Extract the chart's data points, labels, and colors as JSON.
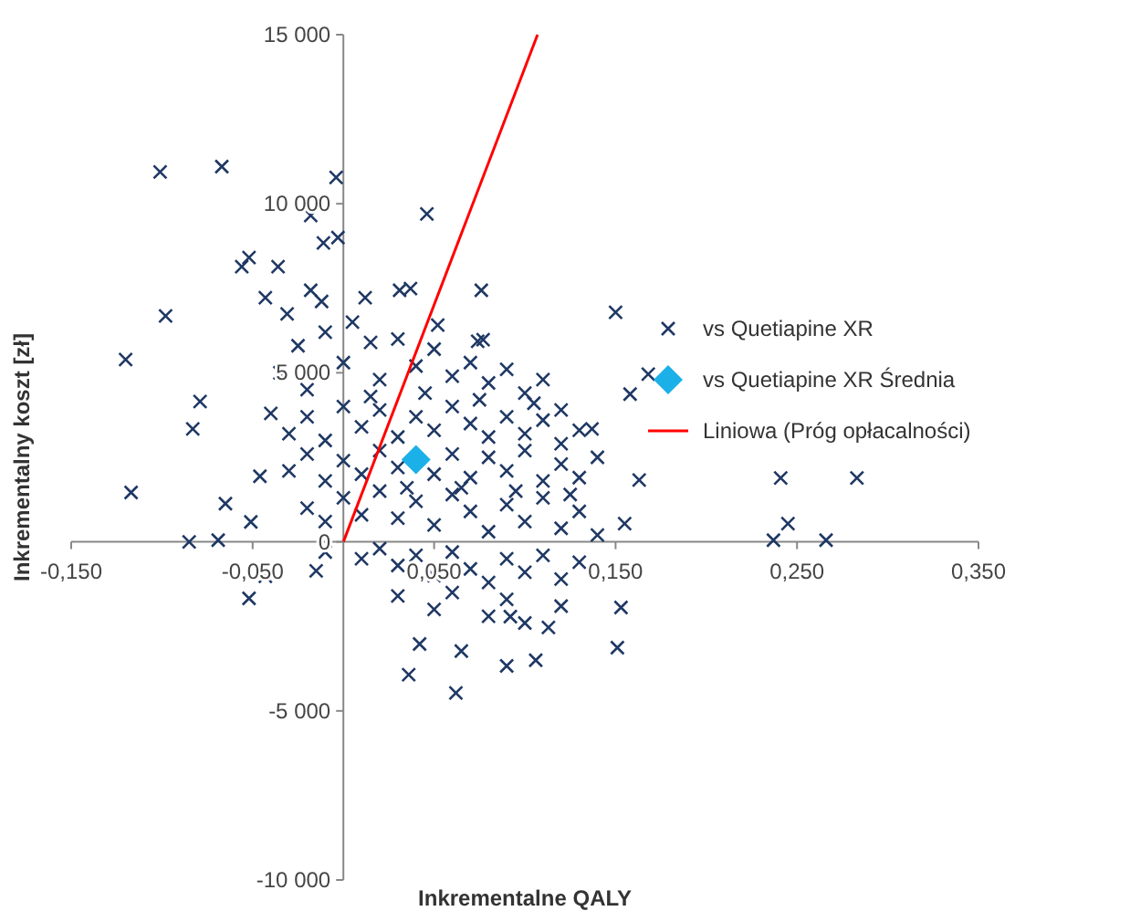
{
  "chart_data": {
    "type": "scatter",
    "xlabel": "Inkrementalne QALY",
    "ylabel": "Inkrementalny koszt [zł]",
    "xlim": [
      -0.15,
      0.35
    ],
    "ylim": [
      -10000,
      15000
    ],
    "xticks": [
      {
        "value": -0.15,
        "label": "-0,150"
      },
      {
        "value": -0.05,
        "label": "-0,050"
      },
      {
        "value": 0.05,
        "label": "0,050"
      },
      {
        "value": 0.15,
        "label": "0,150"
      },
      {
        "value": 0.25,
        "label": "0,250"
      },
      {
        "value": 0.35,
        "label": "0,350"
      }
    ],
    "yticks": [
      {
        "value": -10000,
        "label": "-10 000"
      },
      {
        "value": -5000,
        "label": "-5 000"
      },
      0,
      {
        "value": 5000,
        "label": "5 000"
      },
      {
        "value": 10000,
        "label": "10 000"
      },
      {
        "value": 15000,
        "label": "15 000"
      }
    ],
    "grid": false,
    "legend": "right",
    "series": [
      {
        "name": "vs Quetiapine XR",
        "marker": "cross",
        "color": "#1f3864",
        "x": [
          -0.101,
          -0.067,
          -0.004,
          0.046,
          -0.018,
          -0.12,
          -0.098,
          -0.117,
          -0.083,
          -0.085,
          -0.069,
          -0.046,
          -0.051,
          -0.052,
          -0.015,
          -0.043,
          0.076,
          0.077,
          0.137,
          0.15,
          0.168,
          0.158,
          0.163,
          0.155,
          0.153,
          0.151,
          0.241,
          0.283,
          0.245,
          0.237,
          0.266,
          0.036,
          0.062,
          0.042,
          0.09,
          0.092,
          0.065,
          0.113,
          0.106,
          -0.079,
          -0.065,
          -0.056,
          -0.052,
          -0.011,
          -0.003,
          -0.036,
          -0.043,
          -0.018,
          0.031,
          0.037,
          0.012,
          -0.031,
          -0.012,
          0.052,
          0.074,
          -0.035,
          -0.025,
          -0.02,
          -0.01,
          0.0,
          0.005,
          0.015,
          0.02,
          0.03,
          0.04,
          0.05,
          0.06,
          0.07,
          0.08,
          0.09,
          0.1,
          0.11,
          0.12,
          -0.04,
          -0.03,
          -0.02,
          -0.01,
          0.0,
          0.01,
          0.02,
          0.03,
          0.04,
          0.05,
          0.06,
          0.07,
          0.08,
          0.09,
          0.1,
          0.11,
          0.12,
          0.13,
          -0.03,
          -0.02,
          -0.01,
          0.0,
          0.01,
          0.02,
          0.03,
          0.05,
          0.06,
          0.07,
          0.08,
          0.09,
          0.1,
          0.11,
          0.12,
          0.13,
          0.14,
          -0.02,
          -0.01,
          0.0,
          0.01,
          0.02,
          0.03,
          0.04,
          0.05,
          0.06,
          0.07,
          0.08,
          0.09,
          0.1,
          0.11,
          0.12,
          0.13,
          0.14,
          -0.01,
          0.01,
          0.02,
          0.03,
          0.04,
          0.05,
          0.06,
          0.07,
          0.08,
          0.09,
          0.1,
          0.11,
          0.12,
          0.13,
          0.03,
          0.05,
          0.06,
          0.08,
          0.09,
          0.1,
          0.12,
          0.015,
          0.045,
          0.075,
          0.105,
          0.035,
          0.065,
          0.095,
          0.125
        ],
        "values": [
          10940,
          11100,
          10780,
          9700,
          9650,
          5390,
          6680,
          1460,
          3340,
          0,
          50,
          1940,
          590,
          -1670,
          -860,
          -1020,
          7440,
          5980,
          3340,
          6790,
          4960,
          4370,
          1830,
          540,
          -1940,
          -3130,
          1890,
          1890,
          540,
          50,
          50,
          -3930,
          -4470,
          -3020,
          -3670,
          -2210,
          -3230,
          -2530,
          -3500,
          4150,
          1130,
          8140,
          8410,
          8840,
          9000,
          8140,
          7220,
          7440,
          7440,
          7490,
          7220,
          6740,
          7110,
          6410,
          5930,
          5000,
          5800,
          4500,
          6200,
          5300,
          6500,
          5900,
          4800,
          6000,
          5200,
          5700,
          4900,
          5300,
          4700,
          5100,
          4400,
          4800,
          3900,
          3800,
          3200,
          3700,
          3000,
          4000,
          3400,
          3900,
          3100,
          3700,
          3300,
          4000,
          3500,
          3100,
          3700,
          3200,
          3600,
          2900,
          3300,
          2100,
          2600,
          1800,
          2400,
          2000,
          2700,
          2200,
          2000,
          2600,
          1900,
          2500,
          2100,
          2700,
          1800,
          2300,
          1900,
          2500,
          1000,
          600,
          1300,
          800,
          1500,
          700,
          1200,
          500,
          1400,
          900,
          300,
          1100,
          600,
          1300,
          400,
          900,
          200,
          -300,
          -500,
          -200,
          -700,
          -400,
          -1000,
          -300,
          -800,
          -1200,
          -500,
          -900,
          -400,
          -1100,
          -600,
          -1600,
          -2000,
          -1500,
          -2200,
          -1700,
          -2400,
          -1900,
          4300,
          4400,
          4200,
          4100,
          1600,
          1600,
          1500,
          1400
        ]
      },
      {
        "name": "vs Quetiapine XR Średnia",
        "marker": "diamond",
        "color": "#1cb0e8",
        "x": [
          0.04
        ],
        "values": [
          2430
        ]
      },
      {
        "name": "Liniowa (Próg opłacalności)",
        "type": "line",
        "marker": "none",
        "line_style": "solid",
        "color": "#ff0000",
        "x": [
          0,
          0.107
        ],
        "values": [
          0,
          15000
        ]
      }
    ]
  }
}
